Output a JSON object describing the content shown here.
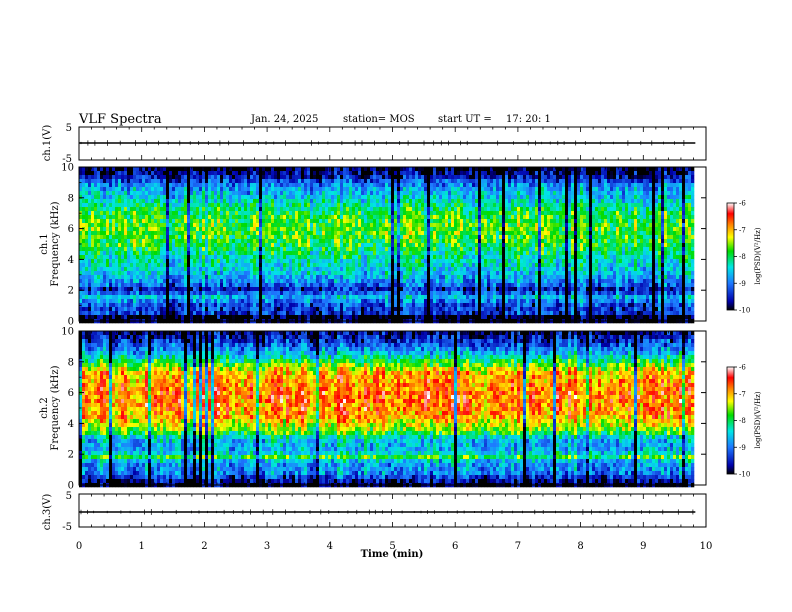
{
  "header": {
    "title": "VLF Spectra",
    "date": "Jan. 24, 2025",
    "station": "station= MOS",
    "start_label": "start  UT  =",
    "start_time": "17: 20: 1"
  },
  "chart_data": [
    {
      "type": "line",
      "name": "ch1-waveform",
      "ylabel": "ch.1(V)",
      "ylim": [
        -5,
        5
      ],
      "yticks": [
        "5",
        "-5"
      ],
      "x": [
        0,
        9.83
      ],
      "y": [
        0,
        0
      ]
    },
    {
      "type": "heatmap",
      "name": "ch1-spectrogram",
      "ylabel": "ch.1\nFrequency (kHz)",
      "ylim": [
        0,
        10
      ],
      "yticks": [
        "0",
        "2",
        "4",
        "6",
        "8",
        "10"
      ],
      "xlim": [
        0,
        9.83
      ],
      "colorbar": {
        "label": "log(PSD)(V²/Hz)",
        "range": [
          -10,
          -6
        ],
        "ticks": [
          "-6",
          "-7",
          "-8",
          "-9",
          "-10"
        ]
      },
      "profile": [
        {
          "f": 0.0,
          "v": -10.0
        },
        {
          "f": 0.3,
          "v": -10.0
        },
        {
          "f": 0.5,
          "v": -9.4
        },
        {
          "f": 1.0,
          "v": -9.3
        },
        {
          "f": 1.6,
          "v": -8.6
        },
        {
          "f": 2.0,
          "v": -9.6
        },
        {
          "f": 2.4,
          "v": -9.0
        },
        {
          "f": 3.0,
          "v": -8.6
        },
        {
          "f": 4.0,
          "v": -8.3
        },
        {
          "f": 5.0,
          "v": -7.9
        },
        {
          "f": 6.0,
          "v": -7.7
        },
        {
          "f": 7.0,
          "v": -7.9
        },
        {
          "f": 8.0,
          "v": -8.5
        },
        {
          "f": 8.8,
          "v": -8.9
        },
        {
          "f": 9.4,
          "v": -9.6
        },
        {
          "f": 10.0,
          "v": -10.0
        }
      ]
    },
    {
      "type": "heatmap",
      "name": "ch2-spectrogram",
      "ylabel": "ch.2\nFrequency (kHz)",
      "ylim": [
        0,
        10
      ],
      "yticks": [
        "0",
        "2",
        "4",
        "6",
        "8",
        "10"
      ],
      "xlim": [
        0,
        9.83
      ],
      "colorbar": {
        "label": "log(PSD)(V²/Hz)",
        "range": [
          -10,
          -6
        ],
        "ticks": [
          "-6",
          "-7",
          "-8",
          "-9",
          "-10"
        ]
      },
      "profile": [
        {
          "f": 0.0,
          "v": -10.0
        },
        {
          "f": 0.3,
          "v": -9.6
        },
        {
          "f": 0.8,
          "v": -8.9
        },
        {
          "f": 1.5,
          "v": -8.8
        },
        {
          "f": 1.8,
          "v": -7.8
        },
        {
          "f": 2.2,
          "v": -8.7
        },
        {
          "f": 3.0,
          "v": -8.6
        },
        {
          "f": 3.5,
          "v": -7.6
        },
        {
          "f": 4.5,
          "v": -6.9
        },
        {
          "f": 5.5,
          "v": -6.7
        },
        {
          "f": 6.5,
          "v": -6.8
        },
        {
          "f": 7.3,
          "v": -7.0
        },
        {
          "f": 8.0,
          "v": -7.9
        },
        {
          "f": 8.6,
          "v": -8.7
        },
        {
          "f": 9.3,
          "v": -9.3
        },
        {
          "f": 10.0,
          "v": -9.8
        }
      ]
    },
    {
      "type": "line",
      "name": "ch3-waveform",
      "ylabel": "ch.3(V)",
      "ylim": [
        -5,
        5
      ],
      "yticks": [
        "5",
        "-5"
      ],
      "x": [
        0,
        9.83
      ],
      "y": [
        0,
        0
      ]
    }
  ],
  "x_axis": {
    "label": "Time (min)",
    "range": [
      0,
      10
    ],
    "ticks": [
      "0",
      "1",
      "2",
      "3",
      "4",
      "5",
      "6",
      "7",
      "8",
      "9",
      "10"
    ]
  }
}
